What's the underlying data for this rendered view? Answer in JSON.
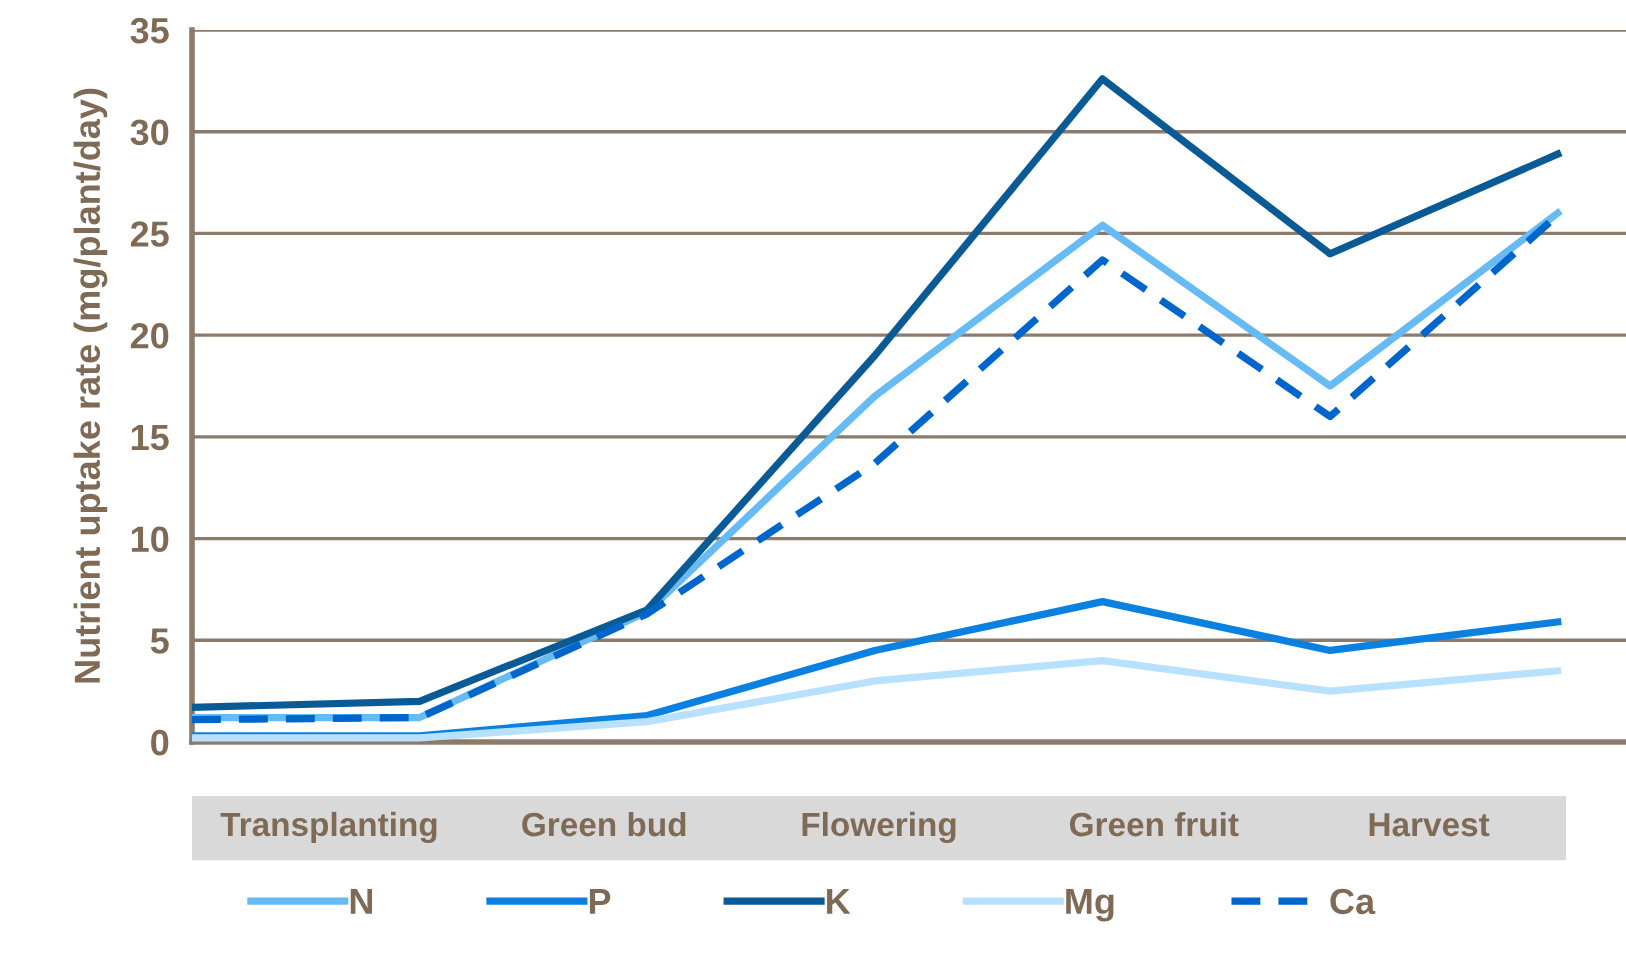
{
  "chart_data": {
    "type": "line",
    "ylabel": "Nutrient uptake rate (mg/plant/day)",
    "categories": [
      null,
      null,
      null,
      null,
      null,
      null,
      null
    ],
    "annotations": [
      "Transplanting",
      "Green bud",
      "Flowering",
      "Green fruit",
      "Harvest"
    ],
    "ylim": [
      0,
      35
    ],
    "yticks": [
      0,
      5,
      10,
      15,
      20,
      25,
      30,
      35
    ],
    "grid": "y",
    "legend": "bottom",
    "marker": "none",
    "series": [
      {
        "name": "N",
        "color": "#66bbf5",
        "line_style": "solid",
        "values": [
          1.2,
          1.2,
          6.4,
          17.0,
          25.4,
          17.5,
          26.0
        ]
      },
      {
        "name": "P",
        "color": "#0a80e0",
        "line_style": "solid",
        "values": [
          0.3,
          0.3,
          1.3,
          4.5,
          6.9,
          4.5,
          5.9
        ]
      },
      {
        "name": "K",
        "color": "#0a5a96",
        "line_style": "solid",
        "values": [
          1.7,
          2.0,
          6.5,
          19.0,
          32.6,
          24.0,
          28.9
        ]
      },
      {
        "name": "Mg",
        "color": "#b8e0ff",
        "line_style": "solid",
        "values": [
          0.2,
          0.2,
          1.0,
          3.0,
          4.0,
          2.5,
          3.5
        ]
      },
      {
        "name": "Ca",
        "color": "#0066cc",
        "line_style": "dashed",
        "values": [
          1.1,
          1.2,
          6.3,
          13.7,
          23.7,
          16.0,
          25.9
        ]
      }
    ]
  }
}
